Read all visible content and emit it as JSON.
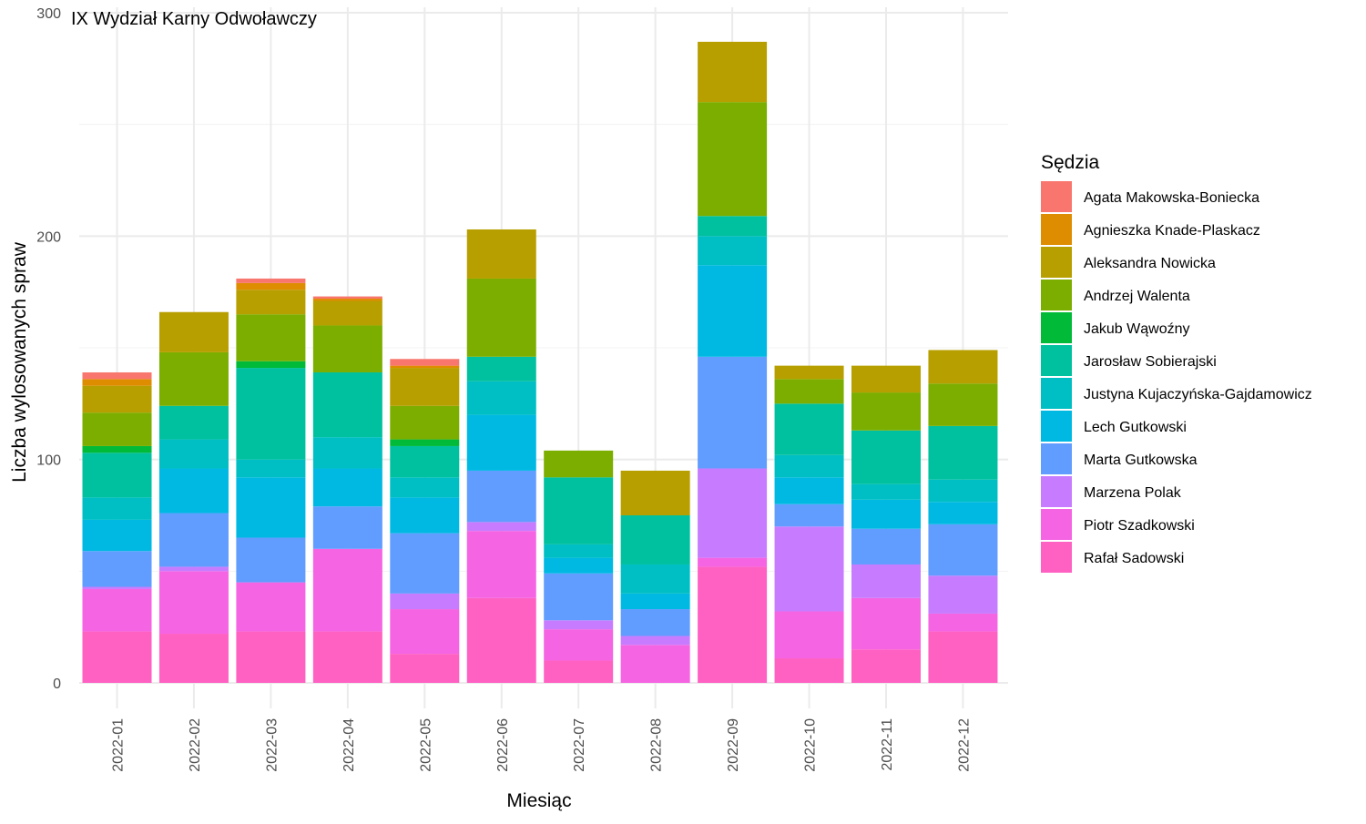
{
  "chart_data": {
    "type": "bar",
    "stacked": true,
    "title": "IX Wydział Karny Odwoławczy",
    "xlabel": "Miesiąc",
    "ylabel": "Liczba wylosowanych spraw",
    "ylim": [
      0,
      300
    ],
    "yticks": [
      "0",
      "100",
      "200",
      "300"
    ],
    "grid": true,
    "legend_position": "right",
    "legend_title": "Sędzia",
    "categories": [
      "2022-01",
      "2022-02",
      "2022-03",
      "2022-04",
      "2022-05",
      "2022-06",
      "2022-07",
      "2022-08",
      "2022-09",
      "2022-10",
      "2022-11",
      "2022-12"
    ],
    "series": [
      {
        "name": "Rafał Sadowski",
        "color": "#FF61C3",
        "values": [
          23,
          22,
          23,
          23,
          13,
          38,
          10,
          0,
          52,
          11,
          15,
          23
        ]
      },
      {
        "name": "Piotr Szadkowski",
        "color": "#F564E3",
        "values": [
          19,
          28,
          22,
          37,
          20,
          30,
          14,
          17,
          4,
          21,
          23,
          8
        ]
      },
      {
        "name": "Marzena Polak",
        "color": "#C77CFF",
        "values": [
          1,
          2,
          0,
          0,
          7,
          4,
          4,
          4,
          40,
          38,
          15,
          17
        ]
      },
      {
        "name": "Marta Gutkowska",
        "color": "#619CFF",
        "values": [
          16,
          24,
          20,
          19,
          27,
          23,
          21,
          12,
          50,
          10,
          16,
          23
        ]
      },
      {
        "name": "Lech Gutkowski",
        "color": "#00B9E3",
        "values": [
          14,
          20,
          27,
          17,
          16,
          25,
          7,
          7,
          41,
          12,
          13,
          10
        ]
      },
      {
        "name": "Justyna Kujaczyńska-Gajdamowicz",
        "color": "#00BFC4",
        "values": [
          10,
          13,
          8,
          14,
          9,
          15,
          6,
          13,
          13,
          10,
          7,
          10
        ]
      },
      {
        "name": "Jarosław Sobierajski",
        "color": "#00C19F",
        "values": [
          20,
          15,
          41,
          29,
          14,
          11,
          30,
          22,
          9,
          23,
          24,
          24
        ]
      },
      {
        "name": "Jakub Wąwoźny",
        "color": "#00BA38",
        "values": [
          3,
          0,
          3,
          0,
          3,
          0,
          0,
          0,
          0,
          0,
          0,
          0
        ]
      },
      {
        "name": "Andrzej Walenta",
        "color": "#7CAE00",
        "values": [
          15,
          24,
          21,
          21,
          15,
          35,
          12,
          0,
          51,
          11,
          17,
          19
        ]
      },
      {
        "name": "Aleksandra Nowicka",
        "color": "#B79F00",
        "values": [
          12,
          18,
          11,
          11,
          17,
          22,
          0,
          20,
          27,
          6,
          12,
          15
        ]
      },
      {
        "name": "Agnieszka Knade-Plaskacz",
        "color": "#DE8C00",
        "values": [
          3,
          0,
          3,
          1,
          1,
          0,
          0,
          0,
          0,
          0,
          0,
          0
        ]
      },
      {
        "name": "Agata Makowska-Boniecka",
        "color": "#F8766D",
        "values": [
          3,
          0,
          2,
          1,
          3,
          0,
          0,
          0,
          0,
          0,
          0,
          0
        ]
      }
    ]
  }
}
